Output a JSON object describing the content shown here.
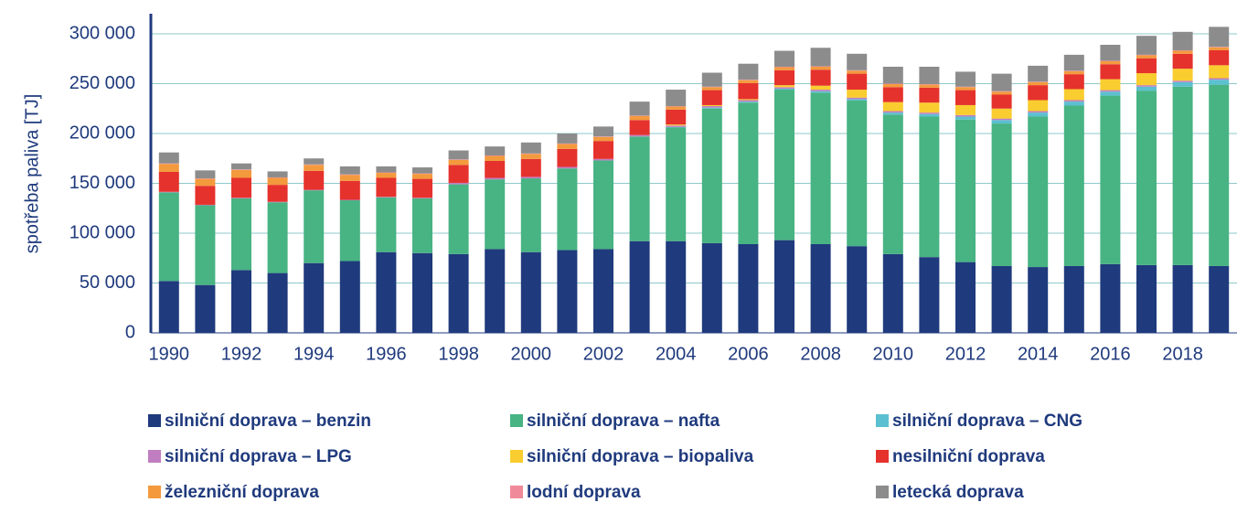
{
  "chart_data": {
    "type": "stacked-bar",
    "y_label": "spotřeba paliva [TJ]",
    "categories": [
      "1990",
      null,
      "1992",
      null,
      "1994",
      null,
      "1996",
      null,
      "1998",
      null,
      "2000",
      null,
      "2002",
      null,
      "2004",
      null,
      "2006",
      null,
      "2008",
      null,
      "2010",
      null,
      "2012",
      null,
      "2014",
      null,
      "2016",
      null,
      "2018",
      null
    ],
    "ylim": [
      0,
      320000
    ],
    "yticks": [
      {
        "value": 0,
        "label": "0"
      },
      {
        "value": 50000,
        "label": "50 000"
      },
      {
        "value": 100000,
        "label": "100 000"
      },
      {
        "value": 150000,
        "label": "150 000"
      },
      {
        "value": 200000,
        "label": "200 000"
      },
      {
        "value": 250000,
        "label": "250 000"
      },
      {
        "value": 300000,
        "label": "300 000"
      }
    ],
    "grid": true,
    "series": [
      {
        "name": "silniční doprava – benzin",
        "color": "#1f3a7d",
        "values": [
          52000,
          48000,
          63000,
          60000,
          70000,
          72000,
          81000,
          80000,
          79000,
          84000,
          81000,
          83000,
          84000,
          92000,
          92000,
          90000,
          89000,
          93000,
          89000,
          87000,
          79000,
          76000,
          71000,
          67000,
          66000,
          67000,
          69000,
          68000,
          68000,
          67000
        ]
      },
      {
        "name": "silniční doprava – nafta",
        "color": "#48b383",
        "values": [
          89000,
          80000,
          72000,
          71000,
          73000,
          61000,
          55000,
          55000,
          70000,
          70000,
          74000,
          82000,
          89000,
          105000,
          114000,
          135000,
          142000,
          151000,
          152000,
          146000,
          140000,
          141000,
          143000,
          143000,
          151000,
          161000,
          169000,
          175000,
          179000,
          182000
        ]
      },
      {
        "name": "silniční doprava – CNG",
        "color": "#5bc0d0",
        "values": [
          0,
          0,
          0,
          0,
          0,
          0,
          0,
          0,
          0,
          0,
          0,
          0,
          0,
          0,
          500,
          1000,
          1000,
          1000,
          1500,
          1500,
          2000,
          2500,
          3000,
          3500,
          4000,
          4000,
          4000,
          4000,
          4500,
          5000
        ]
      },
      {
        "name": "silniční doprava – LPG",
        "color": "#c07ec0",
        "values": [
          500,
          500,
          500,
          500,
          500,
          500,
          500,
          500,
          1500,
          1500,
          1500,
          1500,
          1500,
          1500,
          1500,
          1500,
          1500,
          1500,
          1500,
          1500,
          1500,
          1500,
          1500,
          1500,
          1500,
          1500,
          1500,
          1500,
          1500,
          1500
        ]
      },
      {
        "name": "silniční doprava – biopaliva",
        "color": "#f9cd2f",
        "values": [
          0,
          0,
          0,
          0,
          0,
          0,
          0,
          0,
          0,
          0,
          0,
          0,
          0,
          0,
          1000,
          1000,
          1000,
          2000,
          4000,
          8000,
          9000,
          10000,
          10000,
          10000,
          11000,
          11000,
          11000,
          12000,
          12000,
          13000
        ]
      },
      {
        "name": "nesilniční doprava",
        "color": "#e5322d",
        "values": [
          20000,
          19000,
          20000,
          17000,
          19000,
          19000,
          19000,
          19000,
          18000,
          17000,
          18000,
          18000,
          18000,
          15000,
          15000,
          15000,
          16000,
          15000,
          16000,
          16000,
          15000,
          15000,
          15000,
          14000,
          15000,
          15000,
          15000,
          15000,
          15000,
          15000
        ]
      },
      {
        "name": "železniční doprava",
        "color": "#f39a3d",
        "values": [
          8000,
          7000,
          8000,
          7000,
          6000,
          6000,
          5000,
          5000,
          5000,
          5000,
          5000,
          5000,
          4000,
          4000,
          3000,
          3000,
          3000,
          3000,
          3000,
          3000,
          3000,
          3000,
          3000,
          3000,
          3000,
          3000,
          3000,
          3000,
          3000,
          3000
        ]
      },
      {
        "name": "lodní doprava",
        "color": "#f08a9a",
        "values": [
          500,
          500,
          500,
          500,
          500,
          500,
          500,
          500,
          500,
          500,
          500,
          500,
          500,
          500,
          500,
          500,
          500,
          500,
          500,
          500,
          500,
          500,
          500,
          500,
          500,
          500,
          500,
          500,
          500,
          500
        ]
      },
      {
        "name": "letecká doprava",
        "color": "#8c8c8c",
        "values": [
          11000,
          8000,
          6000,
          6000,
          6000,
          8000,
          6000,
          6000,
          9000,
          9000,
          11000,
          10000,
          10000,
          14000,
          16500,
          14000,
          16000,
          16000,
          18500,
          16500,
          17000,
          17500,
          15000,
          17500,
          16000,
          16000,
          16000,
          19000,
          18500,
          20000
        ]
      }
    ]
  }
}
